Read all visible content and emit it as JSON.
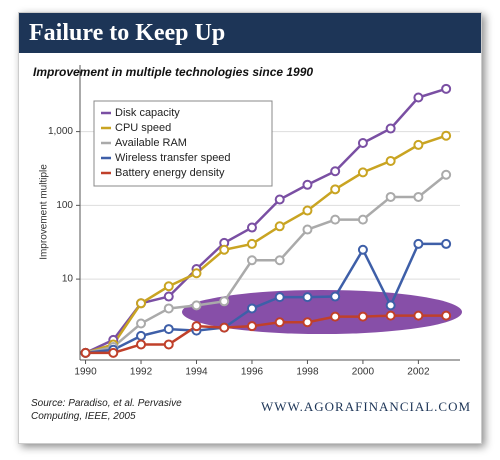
{
  "chart_data": {
    "type": "line",
    "title": "Failure to Keep Up",
    "subtitle": "Improvement in multiple technologies since 1990",
    "y_label": "Improvement multiple",
    "source": "Source:  Paradiso, et al. Pervasive Computing, IEEE, 2005",
    "website": "WWW.AGORAFINANCIAL.COM",
    "log_y": true,
    "grid": true,
    "legend": "upper left",
    "x": [
      1990,
      1991,
      1992,
      1993,
      1994,
      1995,
      1996,
      1997,
      1998,
      1999,
      2000,
      2001,
      2002,
      2003
    ],
    "xlim": [
      1989.8,
      2003.5
    ],
    "xticks": [
      1990,
      1992,
      1994,
      1996,
      1998,
      2000,
      2002
    ],
    "ylim": [
      0.8,
      8000
    ],
    "yticks": [
      10,
      100,
      {
        "value": 1000,
        "label": "1,000"
      }
    ],
    "series": [
      {
        "name": "Disk capacity",
        "color": "#7a4fa3",
        "values": [
          1,
          1.5,
          4.7,
          5.8,
          13.7,
          31,
          50,
          120,
          190,
          290,
          700,
          1100,
          2900,
          3800
        ]
      },
      {
        "name": "CPU speed",
        "color": "#c9a422",
        "values": [
          1,
          1.3,
          4.7,
          8,
          12,
          25,
          30,
          52,
          85,
          165,
          280,
          400,
          660,
          880
        ]
      },
      {
        "name": "Available RAM",
        "color": "#aaaaaa",
        "values": [
          1,
          1.2,
          2.5,
          4,
          4.4,
          5,
          18,
          18,
          47,
          64,
          64,
          130,
          130,
          260
        ]
      },
      {
        "name": "Wireless transfer speed",
        "color": "#3e5fa8",
        "values": [
          1,
          1.1,
          1.7,
          2.1,
          2,
          2.2,
          4,
          5.7,
          5.7,
          5.8,
          25,
          4.4,
          30,
          30
        ]
      },
      {
        "name": "Battery energy density",
        "color": "#c0402a",
        "values": [
          1,
          1,
          1.3,
          1.3,
          2.3,
          2.2,
          2.3,
          2.6,
          2.6,
          3.1,
          3.1,
          3.2,
          3.2,
          3.2
        ]
      }
    ]
  }
}
